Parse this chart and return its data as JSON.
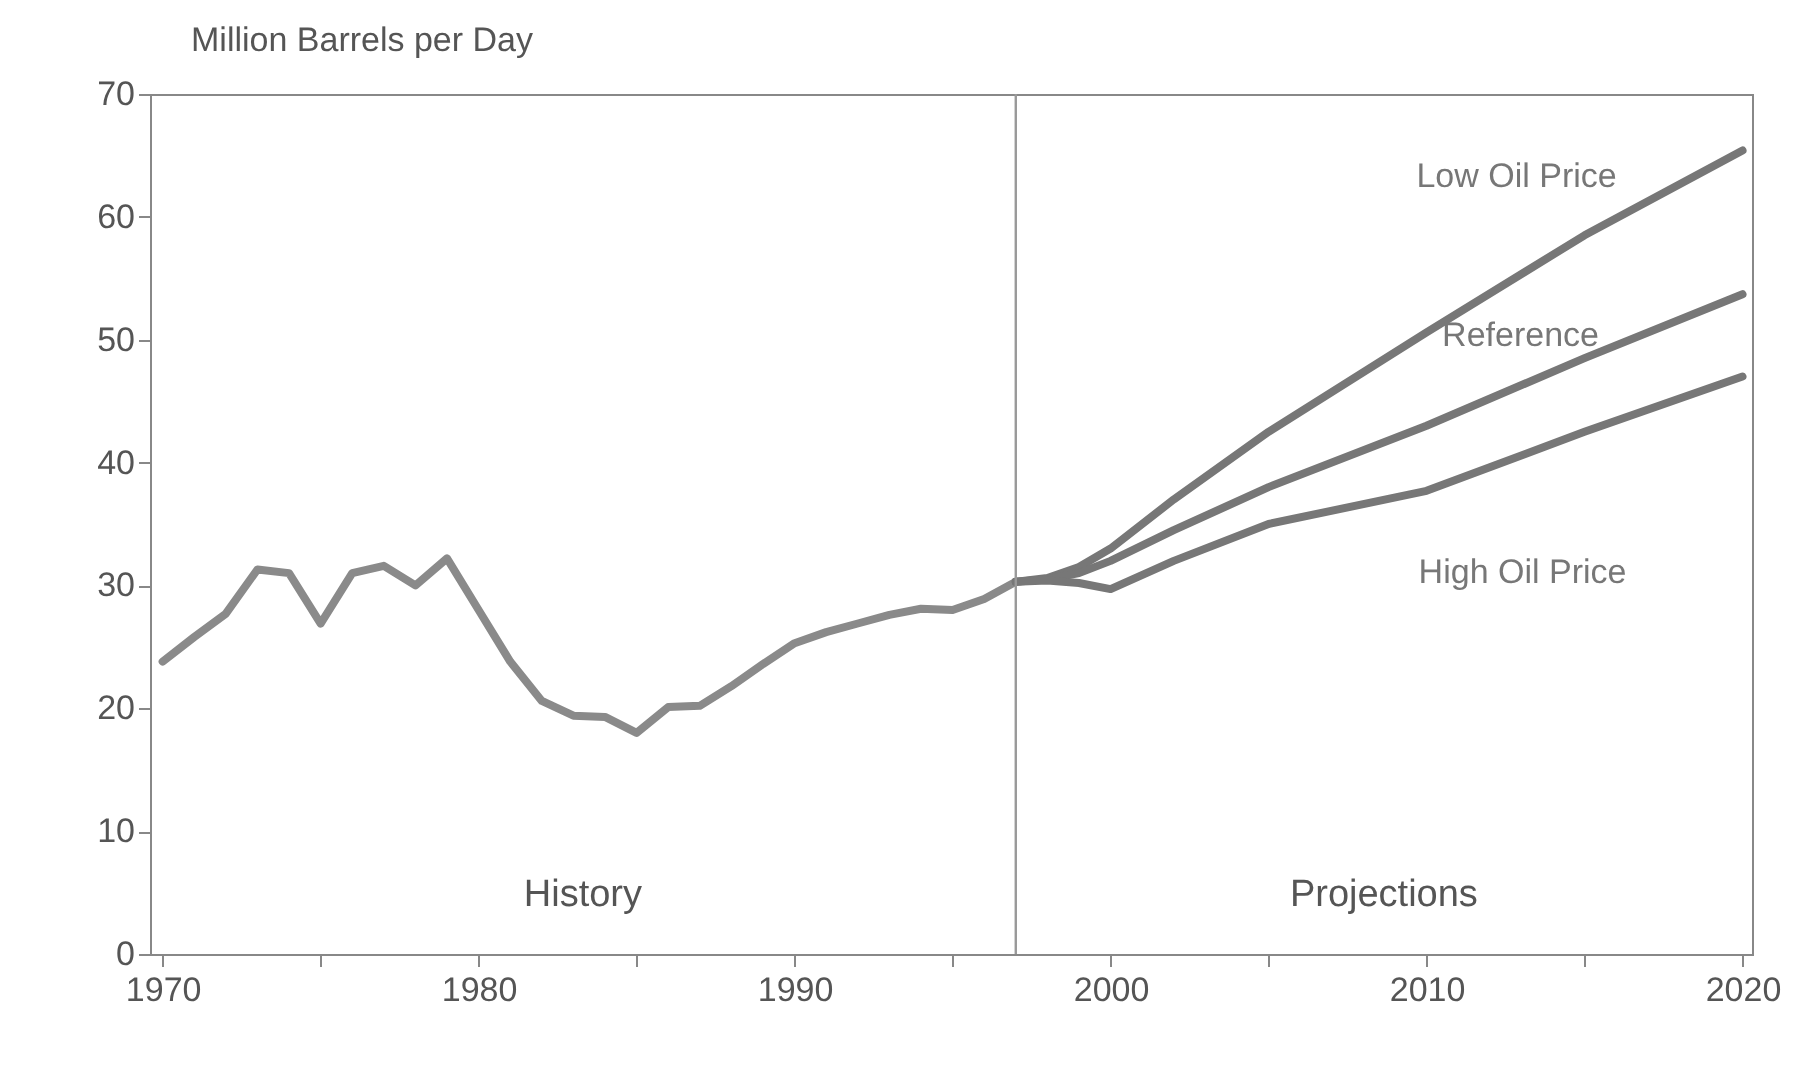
{
  "chart_data": {
    "type": "line",
    "ylabel": "Million Barrels per Day",
    "xlim": [
      1969.6,
      2020.3
    ],
    "ylim": [
      0,
      70
    ],
    "xticks": [
      1970,
      {
        "value": 1975,
        "label": null
      },
      1980,
      {
        "value": 1985,
        "label": null
      },
      1990,
      {
        "value": 1995,
        "label": null
      },
      2000,
      {
        "value": 2005,
        "label": null
      },
      2010,
      {
        "value": 2015,
        "label": null
      },
      2020
    ],
    "yticks": [
      0,
      10,
      20,
      30,
      40,
      50,
      60,
      70
    ],
    "series": [
      {
        "color": "#8a8a8a",
        "x": [
          1970,
          1971,
          1972,
          1973,
          1974,
          1975,
          1976,
          1977,
          1978,
          1979,
          1980,
          1981,
          1982,
          1983,
          1984,
          1985,
          1986,
          1987,
          1988,
          1989,
          1990,
          1991,
          1992,
          1993,
          1994,
          1995,
          1996,
          1997
        ],
        "values": [
          23.8,
          25.8,
          27.7,
          31.3,
          31.0,
          26.9,
          31.0,
          31.6,
          30.0,
          32.2,
          28.0,
          23.8,
          20.6,
          19.4,
          19.3,
          18.0,
          20.1,
          20.2,
          21.8,
          23.6,
          25.3,
          26.2,
          26.9,
          27.6,
          28.1,
          28.0,
          28.9,
          30.3
        ]
      },
      {
        "name": "Low Oil Price",
        "color": "#777777",
        "x": [
          1997,
          1998,
          1999,
          2000,
          2002,
          2005,
          2010,
          2015,
          2020
        ],
        "values": [
          30.3,
          30.6,
          31.5,
          33,
          37,
          42.5,
          50.6,
          58.5,
          65.4
        ]
      },
      {
        "name": "Reference",
        "color": "#777777",
        "x": [
          1997,
          1998,
          1999,
          2000,
          2002,
          2005,
          2010,
          2015,
          2020
        ],
        "values": [
          30.3,
          30.5,
          31,
          32,
          34.5,
          38,
          43,
          48.5,
          53.7
        ]
      },
      {
        "name": "High Oil Price",
        "color": "#777777",
        "x": [
          1997,
          1998,
          1999,
          2000,
          2002,
          2005,
          2010,
          2015,
          2020
        ],
        "values": [
          30.3,
          30.4,
          30.2,
          29.7,
          32,
          35,
          37.7,
          42.5,
          47
        ]
      }
    ],
    "ref_lines": [
      {
        "axis": "x",
        "value": 1997,
        "color": "#999999"
      }
    ],
    "annotations": [
      "History",
      "Projections"
    ],
    "grid": false,
    "line_style": "solid",
    "marker": "none"
  }
}
